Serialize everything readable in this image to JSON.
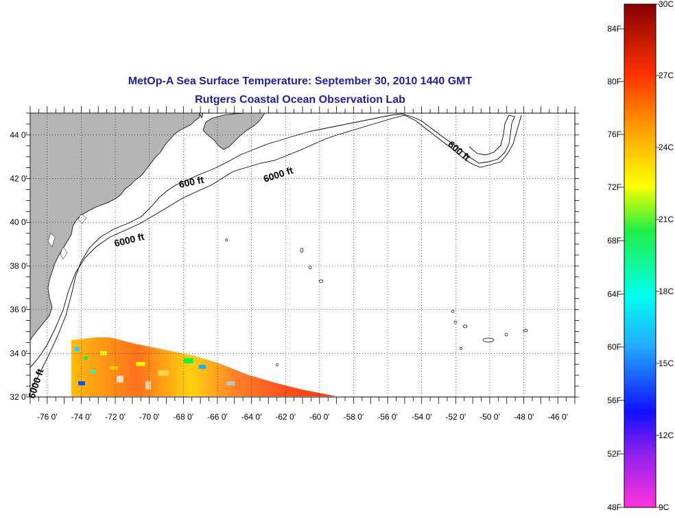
{
  "title": "MetOp-A Sea Surface Temperature:  September 30, 2010 1440 GMT",
  "subtitle": "Rutgers Coastal Ocean Observation Lab",
  "map": {
    "lat_labels": [
      "44 0'",
      "42 0'",
      "40 0'",
      "38 0'",
      "36 0'",
      "34 0'",
      "32 0'"
    ],
    "lat_values": [
      44,
      42,
      40,
      38,
      36,
      34,
      32
    ],
    "lon_labels": [
      "-76 0'",
      "-74 0'",
      "-72 0'",
      "-70 0'",
      "-68 0'",
      "-66 0'",
      "-64 0'",
      "-62 0'",
      "-60 0'",
      "-58 0'",
      "-56 0'",
      "-54 0'",
      "-52 0'",
      "-50 0'",
      "-48 0'",
      "-46 0'"
    ],
    "lon_values": [
      -76,
      -74,
      -72,
      -70,
      -68,
      -66,
      -64,
      -62,
      -60,
      -58,
      -56,
      -54,
      -52,
      -50,
      -48,
      -46
    ],
    "lon_range": [
      -77,
      -45
    ],
    "lat_range": [
      32,
      45
    ],
    "depth_labels": [
      "600 ft",
      "6000 ft",
      "6000 ft",
      "600 ft",
      "6000 ft"
    ],
    "land_color": "#b4b4b4"
  },
  "colorbar": {
    "f_labels": [
      "84F",
      "80F",
      "76F",
      "72F",
      "68F",
      "64F",
      "60F",
      "56F",
      "52F",
      "48F"
    ],
    "c_labels": [
      "30C",
      "27C",
      "24C",
      "21C",
      "18C",
      "15C",
      "12C",
      "9C"
    ]
  }
}
